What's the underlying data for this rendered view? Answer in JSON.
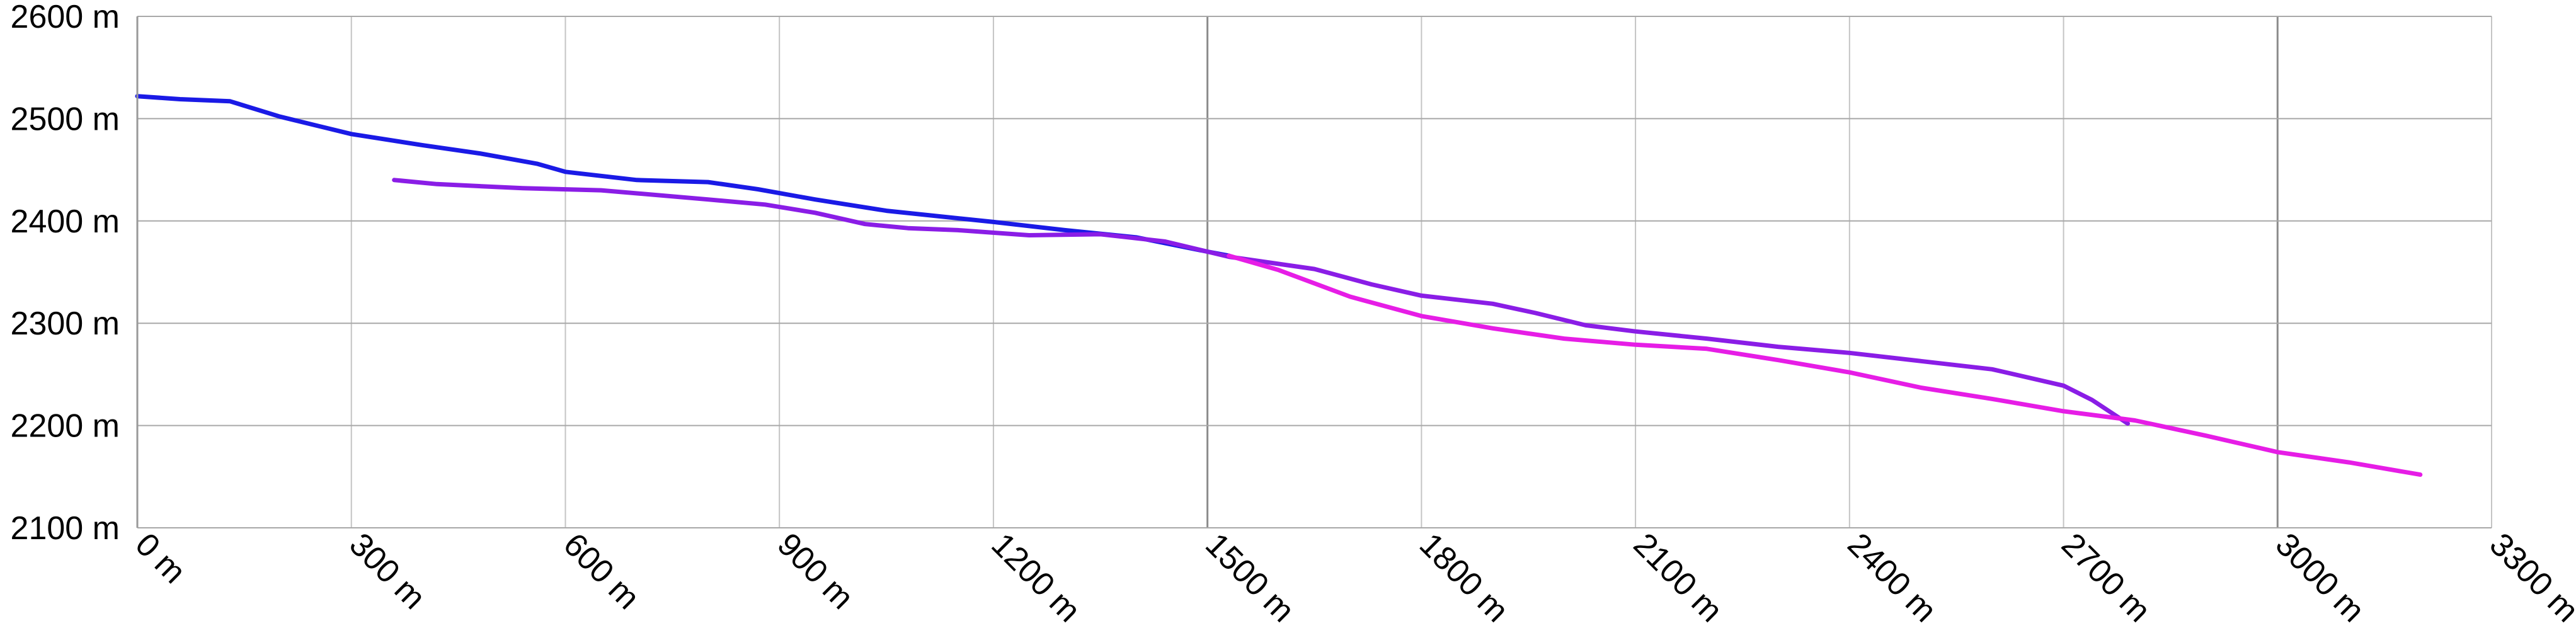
{
  "chart_data": {
    "type": "line",
    "title": "",
    "xlabel": "",
    "ylabel": "",
    "xlim": [
      0,
      3300
    ],
    "ylim": [
      2100,
      2600
    ],
    "x_ticks": [
      0,
      300,
      600,
      900,
      1200,
      1500,
      1800,
      2100,
      2400,
      2700,
      3000,
      3300
    ],
    "y_ticks": [
      2100,
      2200,
      2300,
      2400,
      2500,
      2600
    ],
    "x_tick_labels": [
      "0 m",
      "300 m",
      "600 m",
      "900 m",
      "1200 m",
      "1500 m",
      "1800 m",
      "2100 m",
      "2400 m",
      "2700 m",
      "3000 m",
      "3300 m"
    ],
    "y_tick_labels": [
      "2100 m",
      "2200 m",
      "2300 m",
      "2400 m",
      "2500 m",
      "2600 m"
    ],
    "grid": true,
    "legend": "none",
    "series": [
      {
        "color": "#1a1ae6",
        "points": [
          [
            0,
            2522
          ],
          [
            60,
            2519
          ],
          [
            130,
            2517
          ],
          [
            200,
            2502
          ],
          [
            300,
            2485
          ],
          [
            400,
            2474
          ],
          [
            480,
            2466
          ],
          [
            560,
            2456
          ],
          [
            600,
            2448
          ],
          [
            700,
            2440
          ],
          [
            800,
            2438
          ],
          [
            870,
            2431
          ],
          [
            950,
            2421
          ],
          [
            1050,
            2410
          ],
          [
            1200,
            2399
          ],
          [
            1300,
            2391
          ],
          [
            1400,
            2384
          ],
          [
            1500,
            2370
          ],
          [
            1530,
            2366
          ]
        ]
      },
      {
        "color": "#8a1de6",
        "points": [
          [
            360,
            2440
          ],
          [
            420,
            2436
          ],
          [
            540,
            2432
          ],
          [
            650,
            2430
          ],
          [
            800,
            2421
          ],
          [
            880,
            2416
          ],
          [
            950,
            2408
          ],
          [
            1020,
            2397
          ],
          [
            1080,
            2393
          ],
          [
            1150,
            2391
          ],
          [
            1250,
            2386
          ],
          [
            1350,
            2387
          ],
          [
            1440,
            2380
          ],
          [
            1530,
            2365
          ],
          [
            1600,
            2358
          ],
          [
            1650,
            2353
          ],
          [
            1730,
            2338
          ],
          [
            1800,
            2327
          ],
          [
            1900,
            2319
          ],
          [
            1960,
            2310
          ],
          [
            2030,
            2298
          ],
          [
            2100,
            2292
          ],
          [
            2200,
            2285
          ],
          [
            2300,
            2277
          ],
          [
            2400,
            2271
          ],
          [
            2500,
            2263
          ],
          [
            2600,
            2255
          ],
          [
            2700,
            2239
          ],
          [
            2740,
            2225
          ],
          [
            2790,
            2202
          ]
        ]
      },
      {
        "color": "#e61de6",
        "points": [
          [
            1530,
            2366
          ],
          [
            1600,
            2352
          ],
          [
            1700,
            2326
          ],
          [
            1800,
            2307
          ],
          [
            1900,
            2295
          ],
          [
            2000,
            2285
          ],
          [
            2100,
            2279
          ],
          [
            2200,
            2275
          ],
          [
            2300,
            2264
          ],
          [
            2400,
            2252
          ],
          [
            2500,
            2237
          ],
          [
            2600,
            2226
          ],
          [
            2700,
            2214
          ],
          [
            2800,
            2205
          ],
          [
            2900,
            2190
          ],
          [
            3000,
            2174
          ],
          [
            3100,
            2164
          ],
          [
            3200,
            2152
          ]
        ]
      }
    ]
  }
}
